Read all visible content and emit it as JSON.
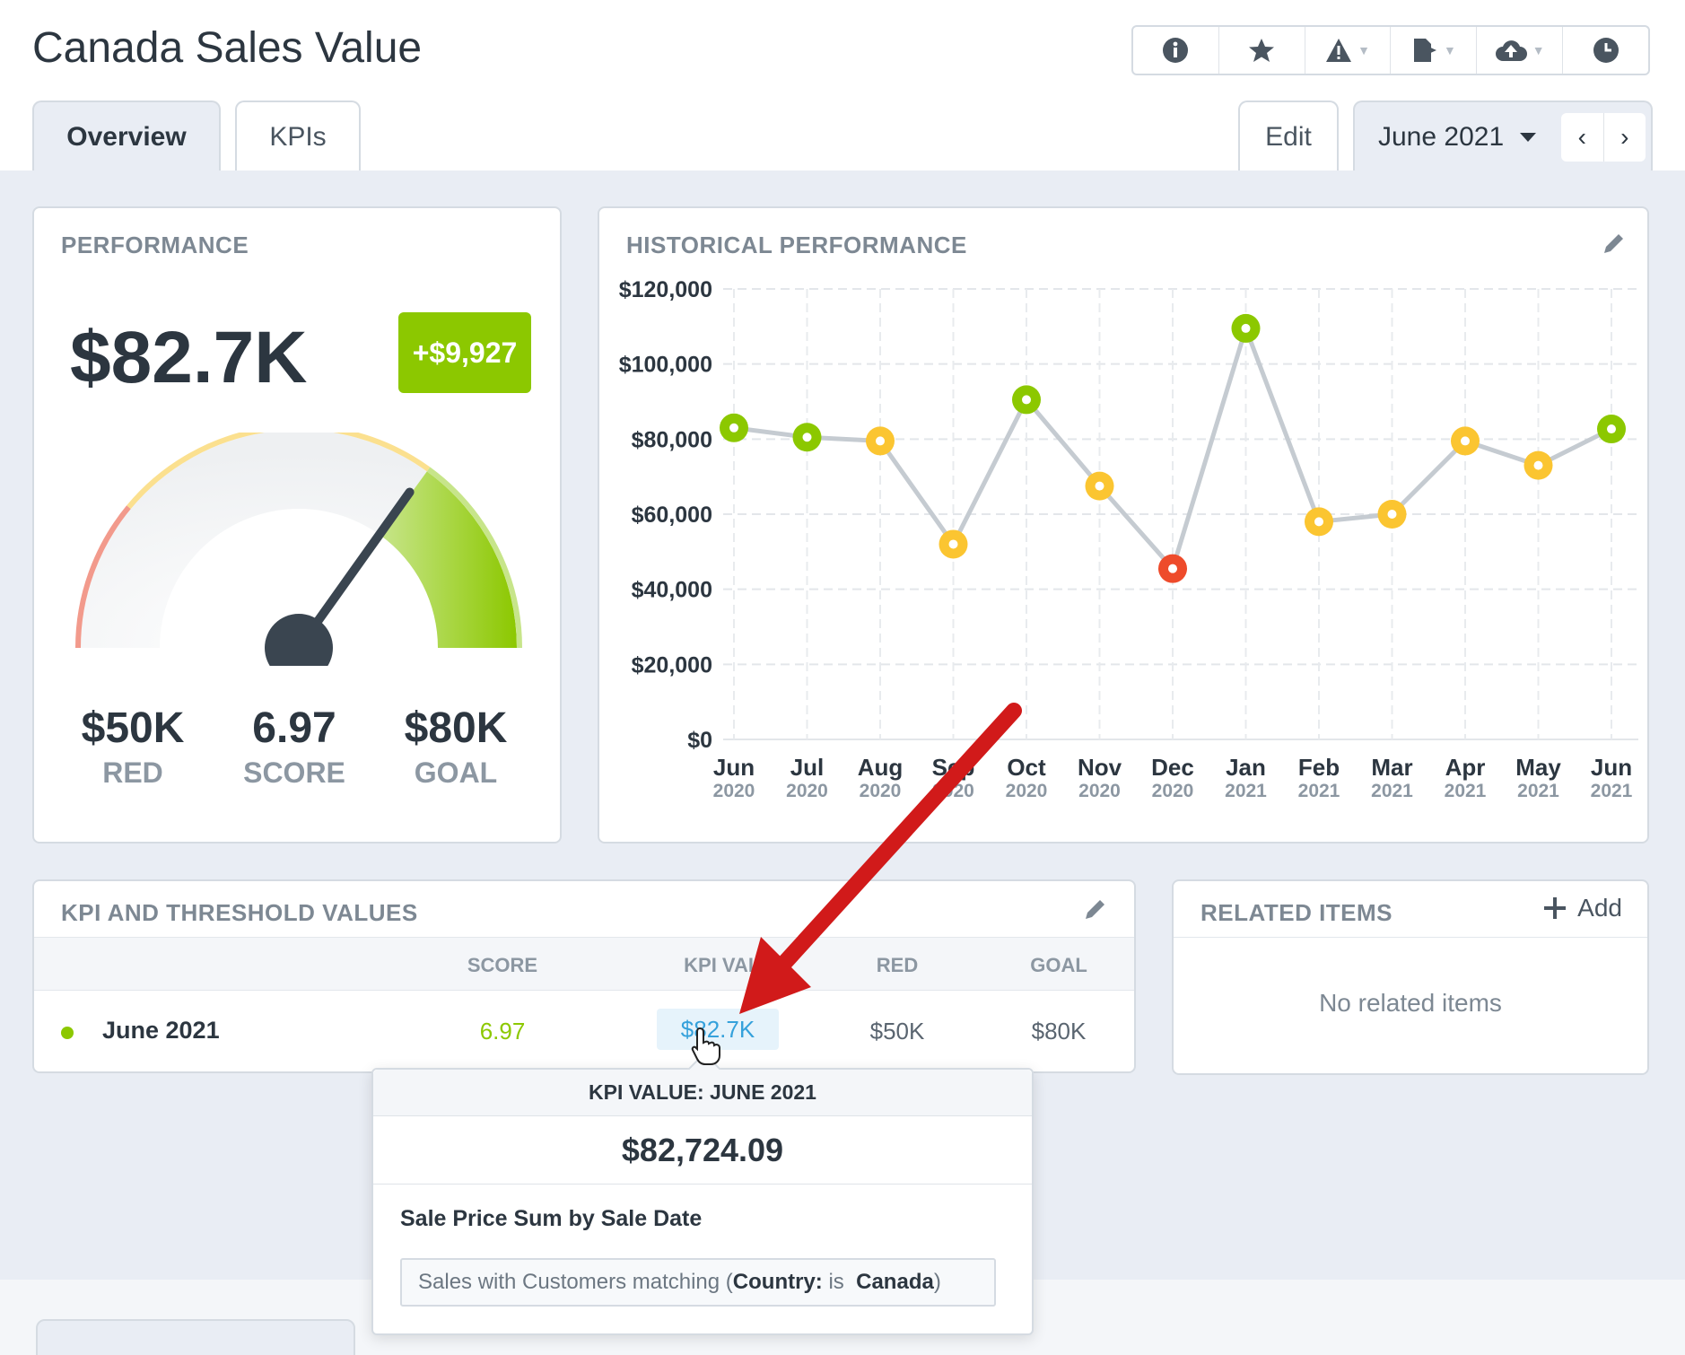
{
  "header": {
    "title": "Canada Sales Value",
    "tabs": [
      {
        "label": "Overview",
        "active": true
      },
      {
        "label": "KPIs",
        "active": false
      }
    ],
    "edit_label": "Edit",
    "period": "June 2021",
    "toolbar_icons": [
      "info-icon",
      "star-icon",
      "alert-icon",
      "export-icon",
      "cloud-icon",
      "clock-icon"
    ]
  },
  "performance": {
    "title": "PERFORMANCE",
    "value": "$82.7K",
    "delta": "+$9,927",
    "gauge": {
      "red_value": "$50K",
      "red_label": "RED",
      "score_value": "6.97",
      "score_label": "SCORE",
      "goal_value": "$80K",
      "goal_label": "GOAL",
      "score": 6.97,
      "score_max": 10
    }
  },
  "history": {
    "title": "HISTORICAL PERFORMANCE"
  },
  "chart_data": {
    "type": "line",
    "categories": [
      "Jun 2020",
      "Jul 2020",
      "Aug 2020",
      "Sep 2020",
      "Oct 2020",
      "Nov 2020",
      "Dec 2020",
      "Jan 2021",
      "Feb 2021",
      "Mar 2021",
      "Apr 2021",
      "May 2021",
      "Jun 2021"
    ],
    "x_month": [
      "Jun",
      "Jul",
      "Aug",
      "Sep",
      "Oct",
      "Nov",
      "Dec",
      "Jan",
      "Feb",
      "Mar",
      "Apr",
      "May",
      "Jun"
    ],
    "x_year": [
      "2020",
      "2020",
      "2020",
      "2020",
      "2020",
      "2020",
      "2020",
      "2021",
      "2021",
      "2021",
      "2021",
      "2021",
      "2021"
    ],
    "values": [
      83000,
      80500,
      79500,
      52000,
      90500,
      67500,
      45500,
      109500,
      58000,
      60000,
      79500,
      73000,
      82700
    ],
    "point_status": [
      "green",
      "green",
      "yellow",
      "yellow",
      "green",
      "yellow",
      "red",
      "green",
      "yellow",
      "yellow",
      "yellow",
      "yellow",
      "green"
    ],
    "ylim": [
      0,
      120000
    ],
    "yticks": [
      0,
      20000,
      40000,
      60000,
      80000,
      100000,
      120000
    ],
    "ytick_labels": [
      "$0",
      "$20,000",
      "$40,000",
      "$60,000",
      "$80,000",
      "$100,000",
      "$120,000"
    ],
    "grid": true,
    "colors": {
      "green": "#8cc800",
      "yellow": "#fbc531",
      "red": "#ee4b2b",
      "line": "#c5cbd1"
    }
  },
  "kpi_table": {
    "title": "KPI AND THRESHOLD VALUES",
    "headers": {
      "score": "SCORE",
      "kpi_value": "KPI VALUE",
      "red": "RED",
      "goal": "GOAL"
    },
    "row": {
      "label": "June 2021",
      "score": "6.97",
      "kpi_value": "$82.7K",
      "red": "$50K",
      "goal": "$80K"
    }
  },
  "related": {
    "title": "RELATED ITEMS",
    "add_label": "Add",
    "empty_text": "No related items"
  },
  "popover": {
    "title": "KPI VALUE: JUNE 2021",
    "value": "$82,724.09",
    "description": "Sale Price Sum by Sale Date",
    "filter_prefix": "Sales with Customers matching (",
    "filter_field": "Country:",
    "filter_op": " is ",
    "filter_value": "Canada",
    "filter_suffix": ")"
  }
}
